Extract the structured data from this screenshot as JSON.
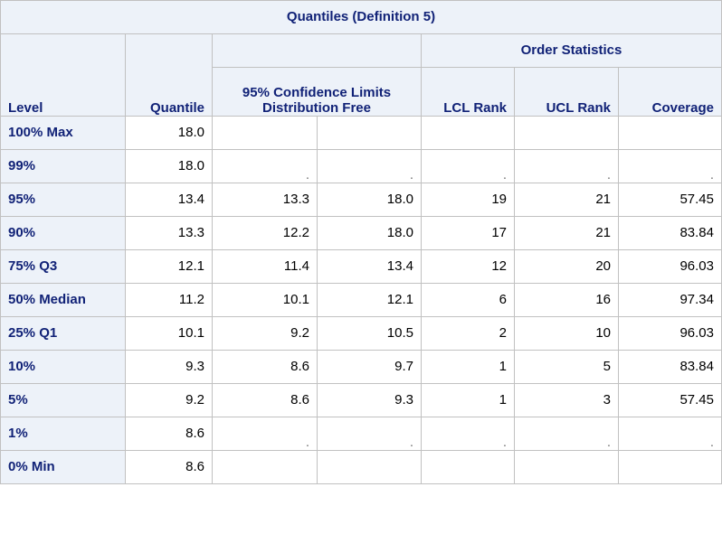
{
  "table": {
    "title": "Quantiles (Definition 5)",
    "group_headers": {
      "order_statistics": "Order Statistics"
    },
    "headers": {
      "level": "Level",
      "quantile": "Quantile",
      "ci_line1": "95% Confidence Limits",
      "ci_line2": "Distribution Free",
      "lcl_rank": "LCL Rank",
      "ucl_rank": "UCL Rank",
      "coverage": "Coverage"
    },
    "rows": [
      {
        "level": "100% Max",
        "quantile": "18.0",
        "lower": "",
        "upper": "",
        "lcl_rank": "",
        "ucl_rank": "",
        "coverage": ""
      },
      {
        "level": "99%",
        "quantile": "18.0",
        "lower": ".",
        "upper": ".",
        "lcl_rank": ".",
        "ucl_rank": ".",
        "coverage": "."
      },
      {
        "level": "95%",
        "quantile": "13.4",
        "lower": "13.3",
        "upper": "18.0",
        "lcl_rank": "19",
        "ucl_rank": "21",
        "coverage": "57.45"
      },
      {
        "level": "90%",
        "quantile": "13.3",
        "lower": "12.2",
        "upper": "18.0",
        "lcl_rank": "17",
        "ucl_rank": "21",
        "coverage": "83.84"
      },
      {
        "level": "75% Q3",
        "quantile": "12.1",
        "lower": "11.4",
        "upper": "13.4",
        "lcl_rank": "12",
        "ucl_rank": "20",
        "coverage": "96.03"
      },
      {
        "level": "50% Median",
        "quantile": "11.2",
        "lower": "10.1",
        "upper": "12.1",
        "lcl_rank": "6",
        "ucl_rank": "16",
        "coverage": "97.34"
      },
      {
        "level": "25% Q1",
        "quantile": "10.1",
        "lower": "9.2",
        "upper": "10.5",
        "lcl_rank": "2",
        "ucl_rank": "10",
        "coverage": "96.03"
      },
      {
        "level": "10%",
        "quantile": "9.3",
        "lower": "8.6",
        "upper": "9.7",
        "lcl_rank": "1",
        "ucl_rank": "5",
        "coverage": "83.84"
      },
      {
        "level": "5%",
        "quantile": "9.2",
        "lower": "8.6",
        "upper": "9.3",
        "lcl_rank": "1",
        "ucl_rank": "3",
        "coverage": "57.45"
      },
      {
        "level": "1%",
        "quantile": "8.6",
        "lower": ".",
        "upper": ".",
        "lcl_rank": ".",
        "ucl_rank": ".",
        "coverage": "."
      },
      {
        "level": "0% Min",
        "quantile": "8.6",
        "lower": "",
        "upper": "",
        "lcl_rank": "",
        "ucl_rank": "",
        "coverage": ""
      }
    ]
  }
}
